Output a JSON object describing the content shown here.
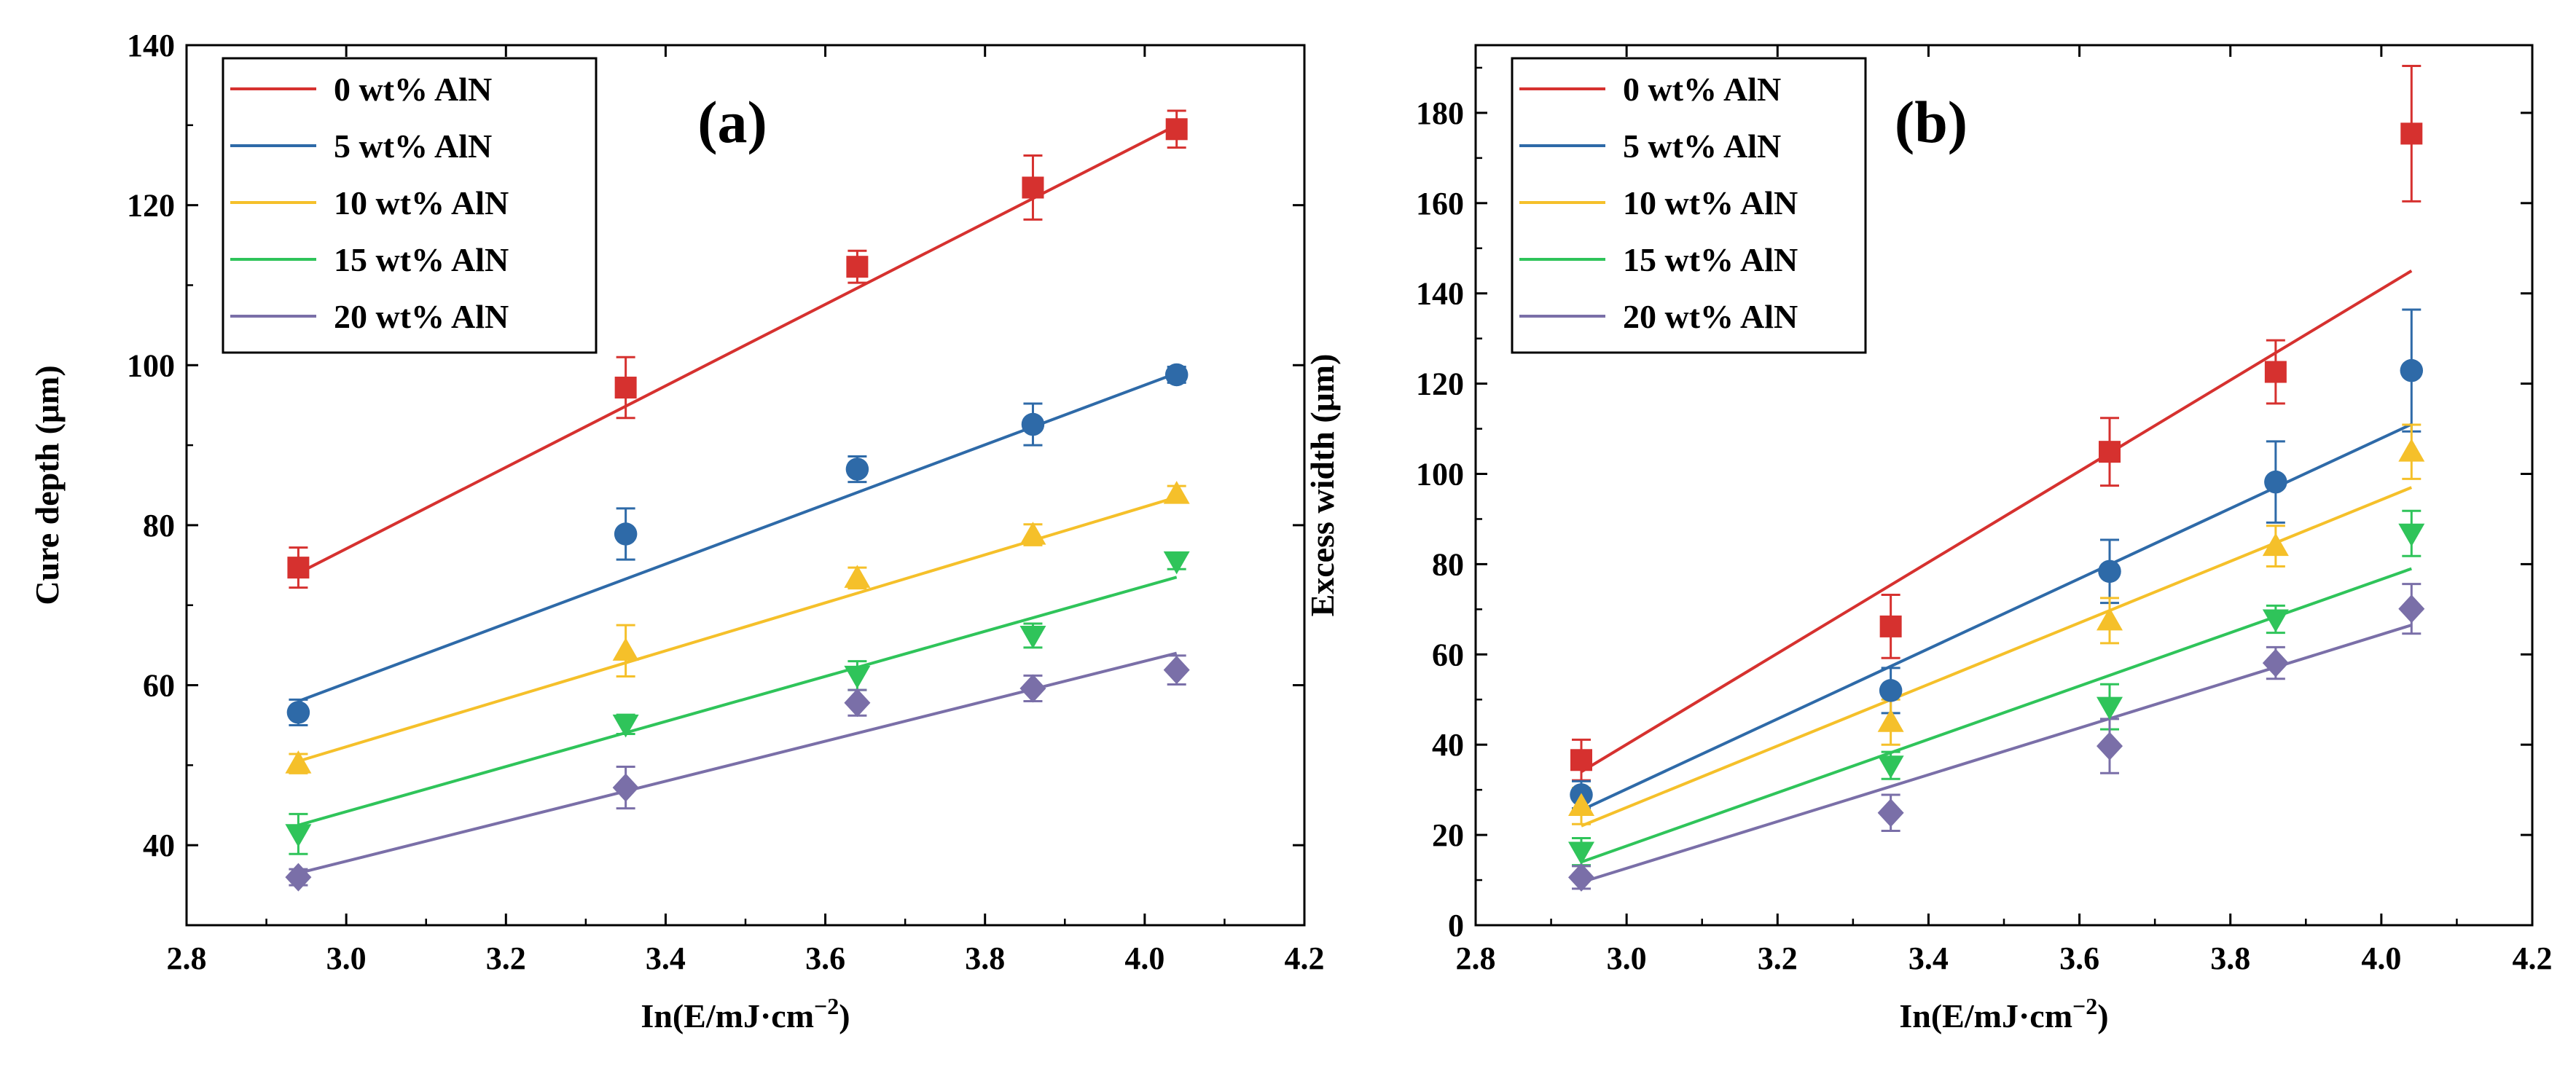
{
  "chart_data": [
    {
      "type": "scatter",
      "panel_label": "(a)",
      "xlabel": "In(E/mJ·cm",
      "xlabel_sup": "−2",
      "xlabel_tail": ")",
      "ylabel": "Cure depth (μm)",
      "xlim": [
        2.8,
        4.2
      ],
      "ylim": [
        30,
        140
      ],
      "xticks": [
        2.8,
        3.0,
        3.2,
        3.4,
        3.6,
        3.8,
        4.0,
        4.2
      ],
      "yticks": [
        40,
        60,
        80,
        100,
        120,
        140
      ],
      "legend_position": "top-left",
      "x": [
        2.94,
        3.35,
        3.64,
        3.86,
        4.04
      ],
      "series": [
        {
          "name": "0  wt% AlN",
          "color": "#d6312f",
          "marker": "square",
          "values": [
            74.7,
            97.2,
            112.3,
            122.2,
            129.5
          ],
          "err": [
            2.5,
            3.8,
            2.0,
            4.0,
            2.3
          ],
          "fit": [
            [
              2.94,
              74.0
            ],
            [
              4.04,
              130.0
            ]
          ]
        },
        {
          "name": "5  wt% AlN",
          "color": "#2e6aa8",
          "marker": "circle",
          "values": [
            56.6,
            78.9,
            87.0,
            92.6,
            98.8
          ],
          "err": [
            1.6,
            3.2,
            1.6,
            2.6,
            1.0
          ],
          "fit": [
            [
              2.94,
              58.0
            ],
            [
              4.04,
              99.0
            ]
          ]
        },
        {
          "name": "10 wt% AlN",
          "color": "#f5c02a",
          "marker": "triangle-up",
          "values": [
            50.2,
            64.3,
            73.4,
            78.8,
            83.9
          ],
          "err": [
            1.2,
            3.2,
            1.3,
            1.3,
            1.0
          ],
          "fit": [
            [
              2.94,
              50.5
            ],
            [
              4.04,
              83.5
            ]
          ]
        },
        {
          "name": "15 wt% AlN",
          "color": "#2fc45a",
          "marker": "triangle-down",
          "values": [
            41.4,
            55.1,
            61.2,
            66.2,
            75.5
          ],
          "err": [
            2.5,
            1.2,
            1.8,
            1.5,
            1.0
          ],
          "fit": [
            [
              2.94,
              42.5
            ],
            [
              4.04,
              73.5
            ]
          ]
        },
        {
          "name": "20 wt% AlN",
          "color": "#7a6fa8",
          "marker": "diamond",
          "values": [
            36.0,
            47.2,
            57.8,
            59.6,
            61.9
          ],
          "err": [
            1.0,
            2.6,
            1.6,
            1.6,
            1.8
          ],
          "fit": [
            [
              2.94,
              36.5
            ],
            [
              4.04,
              64.0
            ]
          ]
        }
      ]
    },
    {
      "type": "scatter",
      "panel_label": "(b)",
      "xlabel": "In(E/mJ·cm",
      "xlabel_sup": "−2",
      "xlabel_tail": ")",
      "ylabel": "Excess width (μm)",
      "xlim": [
        2.8,
        4.2
      ],
      "ylim": [
        0,
        195
      ],
      "xticks": [
        2.8,
        3.0,
        3.2,
        3.4,
        3.6,
        3.8,
        4.0,
        4.2
      ],
      "yticks": [
        0,
        20,
        40,
        60,
        80,
        100,
        120,
        140,
        160,
        180
      ],
      "legend_position": "top-left",
      "x": [
        2.94,
        3.35,
        3.64,
        3.86,
        4.04
      ],
      "series": [
        {
          "name": "0  wt% AlN",
          "color": "#d6312f",
          "marker": "square",
          "values": [
            36.6,
            66.2,
            104.9,
            122.6,
            175.4
          ],
          "err": [
            4.5,
            7.0,
            7.5,
            7.0,
            15.0
          ],
          "fit": [
            [
              2.94,
              34.0
            ],
            [
              4.04,
              145.0
            ]
          ]
        },
        {
          "name": "5  wt% AlN",
          "color": "#2e6aa8",
          "marker": "circle",
          "values": [
            28.9,
            52.0,
            78.4,
            98.2,
            122.9
          ],
          "err": [
            3.0,
            5.0,
            7.0,
            9.0,
            13.5
          ],
          "fit": [
            [
              2.94,
              25.5
            ],
            [
              4.04,
              111.0
            ]
          ]
        },
        {
          "name": "10 wt% AlN",
          "color": "#f5c02a",
          "marker": "triangle-up",
          "values": [
            26.4,
            45.0,
            67.5,
            84.0,
            104.9
          ],
          "err": [
            4.0,
            5.0,
            5.0,
            4.5,
            6.0
          ],
          "fit": [
            [
              2.94,
              22.0
            ],
            [
              4.04,
              97.0
            ]
          ]
        },
        {
          "name": "15 wt% AlN",
          "color": "#2fc45a",
          "marker": "triangle-down",
          "values": [
            16.3,
            35.4,
            48.4,
            67.8,
            86.8
          ],
          "err": [
            3.0,
            3.0,
            5.0,
            3.0,
            5.0
          ],
          "fit": [
            [
              2.94,
              14.0
            ],
            [
              4.04,
              79.0
            ]
          ]
        },
        {
          "name": "20 wt% AlN",
          "color": "#7a6fa8",
          "marker": "diamond",
          "values": [
            10.6,
            24.9,
            39.7,
            58.1,
            70.1
          ],
          "err": [
            2.5,
            4.0,
            6.0,
            3.5,
            5.5
          ],
          "fit": [
            [
              2.94,
              9.5
            ],
            [
              4.04,
              66.5
            ]
          ]
        }
      ]
    }
  ]
}
